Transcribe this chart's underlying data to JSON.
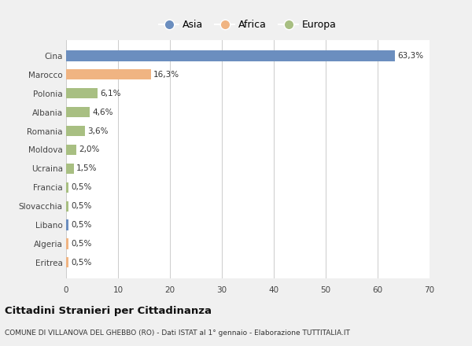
{
  "categories": [
    "Cina",
    "Marocco",
    "Polonia",
    "Albania",
    "Romania",
    "Moldova",
    "Ucraina",
    "Francia",
    "Slovacchia",
    "Libano",
    "Algeria",
    "Eritrea"
  ],
  "values": [
    63.3,
    16.3,
    6.1,
    4.6,
    3.6,
    2.0,
    1.5,
    0.5,
    0.5,
    0.5,
    0.5,
    0.5
  ],
  "colors": [
    "#6b8ebf",
    "#f0b482",
    "#a8bf82",
    "#a8bf82",
    "#a8bf82",
    "#a8bf82",
    "#a8bf82",
    "#a8bf82",
    "#a8bf82",
    "#6b8ebf",
    "#f0b482",
    "#f0b482"
  ],
  "labels": [
    "63,3%",
    "16,3%",
    "6,1%",
    "4,6%",
    "3,6%",
    "2,0%",
    "1,5%",
    "0,5%",
    "0,5%",
    "0,5%",
    "0,5%",
    "0,5%"
  ],
  "legend": [
    {
      "label": "Asia",
      "color": "#6b8ebf"
    },
    {
      "label": "Africa",
      "color": "#f0b482"
    },
    {
      "label": "Europa",
      "color": "#a8bf82"
    }
  ],
  "xlim": [
    0,
    70
  ],
  "xticks": [
    0,
    10,
    20,
    30,
    40,
    50,
    60,
    70
  ],
  "title": "Cittadini Stranieri per Cittadinanza",
  "subtitle": "COMUNE DI VILLANOVA DEL GHEBBO (RO) - Dati ISTAT al 1° gennaio - Elaborazione TUTTITALIA.IT",
  "bg_color": "#f0f0f0",
  "plot_bg_color": "#ffffff",
  "bar_height": 0.55,
  "label_fontsize": 7.5,
  "tick_fontsize": 7.5,
  "title_fontsize": 9.5,
  "subtitle_fontsize": 6.5,
  "legend_fontsize": 9
}
